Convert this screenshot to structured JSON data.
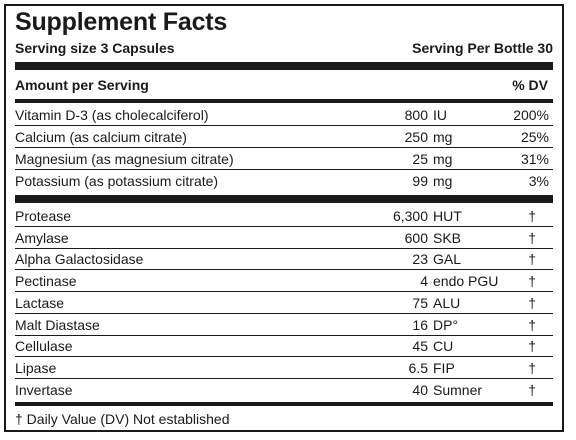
{
  "title": "Supplement Facts",
  "serving_size": "Serving size 3 Capsules",
  "servings_per": "Serving Per Bottle 30",
  "header": {
    "amount": "Amount per Serving",
    "dv": "% DV"
  },
  "nutrients": [
    {
      "name": "Vitamin D-3 (as cholecalciferol)",
      "amount": "800",
      "unit": "IU",
      "dv": "200%"
    },
    {
      "name": "Calcium (as calcium citrate)",
      "amount": "250",
      "unit": "mg",
      "dv": "25%"
    },
    {
      "name": "Magnesium (as magnesium citrate)",
      "amount": "25",
      "unit": "mg",
      "dv": "31%"
    },
    {
      "name": "Potassium  (as potassium citrate)",
      "amount": "99",
      "unit": "mg",
      "dv": "3%"
    }
  ],
  "enzymes": [
    {
      "name": "Protease",
      "amount": "6,300",
      "unit": "HUT",
      "dv": "†"
    },
    {
      "name": "Amylase",
      "amount": "600",
      "unit": "SKB",
      "dv": "†"
    },
    {
      "name": "Alpha Galactosidase",
      "amount": "23",
      "unit": "GAL",
      "dv": "†"
    },
    {
      "name": "Pectinase",
      "amount": "4",
      "unit": "endo PGU",
      "dv": "†"
    },
    {
      "name": "Lactase",
      "amount": "75",
      "unit": "ALU",
      "dv": "†"
    },
    {
      "name": "Malt Diastase",
      "amount": "16",
      "unit": "DP°",
      "dv": "†"
    },
    {
      "name": "Cellulase",
      "amount": "45",
      "unit": "CU",
      "dv": "†"
    },
    {
      "name": "Lipase",
      "amount": "6.5",
      "unit": "FIP",
      "dv": "†"
    },
    {
      "name": "Invertase",
      "amount": "40",
      "unit": "Sumner",
      "dv": "†"
    }
  ],
  "footnote": "† Daily Value (DV) Not established"
}
